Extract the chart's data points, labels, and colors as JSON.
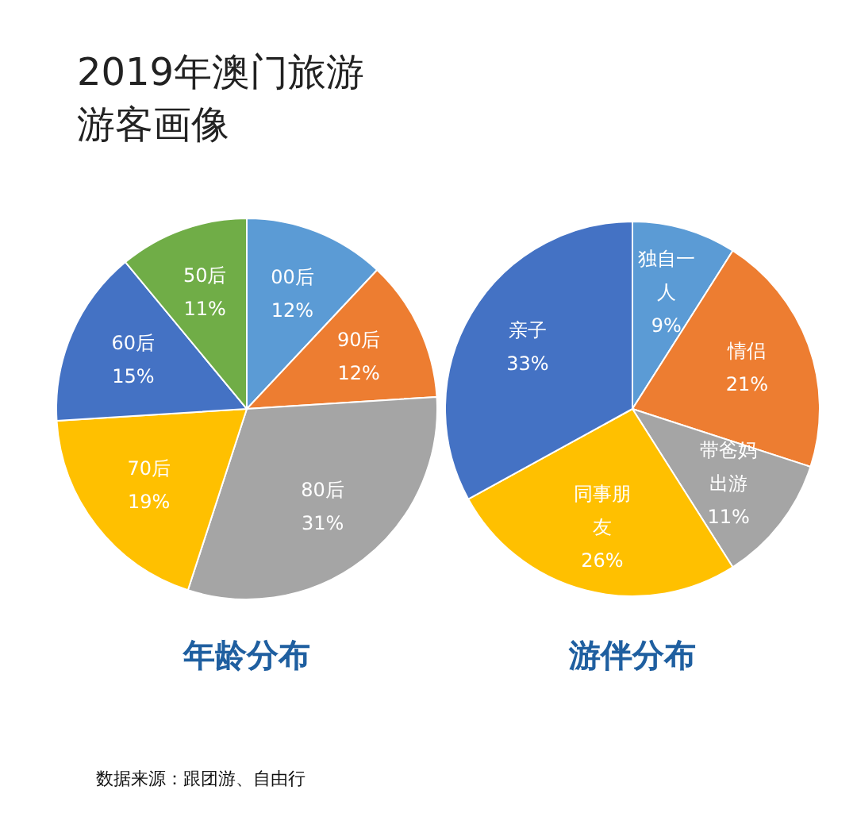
{
  "chart_data": [
    {
      "type": "other",
      "title": "2019年澳门旅游",
      "subtitle": "游客画像",
      "annotations": [
        "数据来源：跟团游、自由行"
      ]
    },
    {
      "type": "pie",
      "title": "年龄分布",
      "categories": [
        "00后",
        "90后",
        "80后",
        "70后",
        "60后",
        "50后"
      ],
      "values": [
        12,
        12,
        31,
        19,
        15,
        11
      ],
      "colors": [
        "#5b9bd5",
        "#ed7d31",
        "#a5a5a5",
        "#ffc000",
        "#4472c4",
        "#70ad47"
      ],
      "value_labels": [
        "12%",
        "12%",
        "31%",
        "19%",
        "15%",
        "11%"
      ]
    },
    {
      "type": "pie",
      "title": "游伴分布",
      "categories": [
        "独自一人",
        "情侣",
        "带爸妈出游",
        "同事朋友",
        "亲子"
      ],
      "values": [
        9,
        21,
        11,
        26,
        33
      ],
      "colors": [
        "#5b9bd5",
        "#ed7d31",
        "#a5a5a5",
        "#ffc000",
        "#4472c4"
      ],
      "value_labels": [
        "9%",
        "21%",
        "11%",
        "26%",
        "33%"
      ]
    }
  ]
}
